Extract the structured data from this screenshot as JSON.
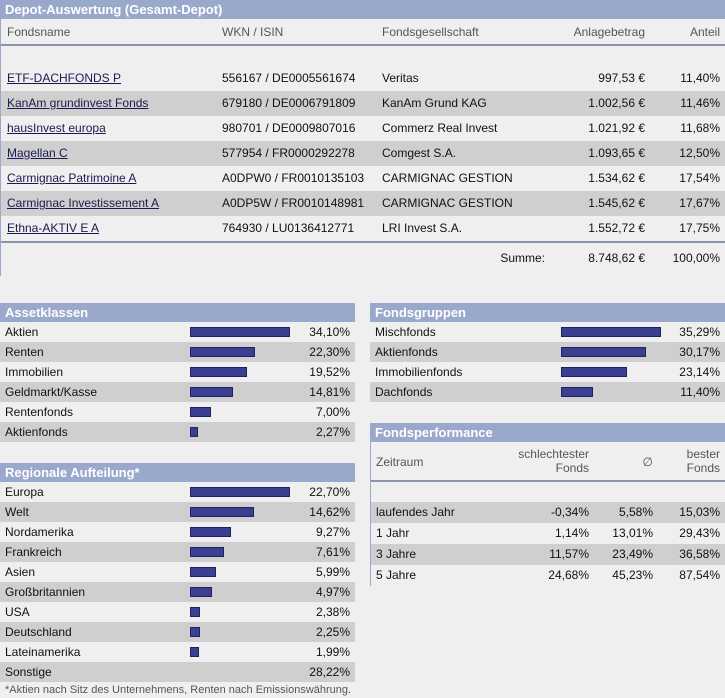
{
  "depot": {
    "title": "Depot-Auswertung (Gesamt-Depot)",
    "columns": [
      "Fondsname",
      "WKN / ISIN",
      "Fondsgesellschaft",
      "Anlagebetrag",
      "Anteil"
    ],
    "rows": [
      {
        "name": "ETF-DACHFONDS P",
        "wkn": "556167 / DE0005561674",
        "company": "Veritas",
        "amount": "997,53 €",
        "share": "11,40%"
      },
      {
        "name": "KanAm grundinvest Fonds",
        "wkn": "679180 / DE0006791809",
        "company": "KanAm Grund KAG",
        "amount": "1.002,56 €",
        "share": "11,46%"
      },
      {
        "name": "hausInvest europa",
        "wkn": "980701 / DE0009807016",
        "company": "Commerz Real Invest",
        "amount": "1.021,92 €",
        "share": "11,68%"
      },
      {
        "name": "Magellan C",
        "wkn": "577954 / FR0000292278",
        "company": "Comgest S.A.",
        "amount": "1.093,65 €",
        "share": "12,50%"
      },
      {
        "name": "Carmignac Patrimoine A",
        "wkn": "A0DPW0 / FR0010135103",
        "company": "CARMIGNAC GESTION",
        "amount": "1.534,62 €",
        "share": "17,54%"
      },
      {
        "name": "Carmignac Investissement A",
        "wkn": "A0DP5W / FR0010148981",
        "company": "CARMIGNAC GESTION",
        "amount": "1.545,62 €",
        "share": "17,67%"
      },
      {
        "name": "Ethna-AKTIV E A",
        "wkn": "764930 / LU0136412771",
        "company": "LRI Invest S.A.",
        "amount": "1.552,72 €",
        "share": "17,75%"
      }
    ],
    "sum_label": "Summe:",
    "sum_amount": "8.748,62 €",
    "sum_share": "100,00%"
  },
  "assets": {
    "title": "Assetklassen",
    "items": [
      {
        "label": "Aktien",
        "value": "34,10%",
        "pct": 34.1
      },
      {
        "label": "Renten",
        "value": "22,30%",
        "pct": 22.3
      },
      {
        "label": "Immobilien",
        "value": "19,52%",
        "pct": 19.52
      },
      {
        "label": "Geldmarkt/Kasse",
        "value": "14,81%",
        "pct": 14.81
      },
      {
        "label": "Rentenfonds",
        "value": "7,00%",
        "pct": 7.0
      },
      {
        "label": "Aktienfonds",
        "value": "2,27%",
        "pct": 2.27
      }
    ]
  },
  "groups": {
    "title": "Fondsgruppen",
    "items": [
      {
        "label": "Mischfonds",
        "value": "35,29%",
        "pct": 35.29
      },
      {
        "label": "Aktienfonds",
        "value": "30,17%",
        "pct": 30.17
      },
      {
        "label": "Immobilienfonds",
        "value": "23,14%",
        "pct": 23.14
      },
      {
        "label": "Dachfonds",
        "value": "11,40%",
        "pct": 11.4
      }
    ]
  },
  "regions": {
    "title": "Regionale Aufteilung*",
    "items": [
      {
        "label": "Europa",
        "value": "22,70%",
        "pct": 22.7,
        "bar": true
      },
      {
        "label": "Welt",
        "value": "14,62%",
        "pct": 14.62,
        "bar": true
      },
      {
        "label": "Nordamerika",
        "value": "9,27%",
        "pct": 9.27,
        "bar": true
      },
      {
        "label": "Frankreich",
        "value": "7,61%",
        "pct": 7.61,
        "bar": true
      },
      {
        "label": "Asien",
        "value": "5,99%",
        "pct": 5.99,
        "bar": true
      },
      {
        "label": "Großbritannien",
        "value": "4,97%",
        "pct": 4.97,
        "bar": true
      },
      {
        "label": "USA",
        "value": "2,38%",
        "pct": 2.38,
        "bar": true
      },
      {
        "label": "Deutschland",
        "value": "2,25%",
        "pct": 2.25,
        "bar": true
      },
      {
        "label": "Lateinamerika",
        "value": "1,99%",
        "pct": 1.99,
        "bar": true
      },
      {
        "label": "Sonstige",
        "value": "28,22%",
        "pct": 28.22,
        "bar": false
      }
    ],
    "footnote": "*Aktien nach Sitz des Unternehmens, Renten nach Emissionswährung."
  },
  "performance": {
    "title": "Fondsperformance",
    "col_period": "Zeitraum",
    "col_worst_1": "schlechtester",
    "col_worst_2": "Fonds",
    "col_avg": "∅",
    "col_best_1": "bester",
    "col_best_2": "Fonds",
    "rows": [
      {
        "period": "laufendes Jahr",
        "worst": "-0,34%",
        "avg": "5,58%",
        "best": "15,03%"
      },
      {
        "period": "1 Jahr",
        "worst": "1,14%",
        "avg": "13,01%",
        "best": "29,43%"
      },
      {
        "period": "3 Jahre",
        "worst": "11,57%",
        "avg": "23,49%",
        "best": "36,58%"
      },
      {
        "period": "5 Jahre",
        "worst": "24,68%",
        "avg": "45,23%",
        "best": "87,54%"
      }
    ]
  }
}
